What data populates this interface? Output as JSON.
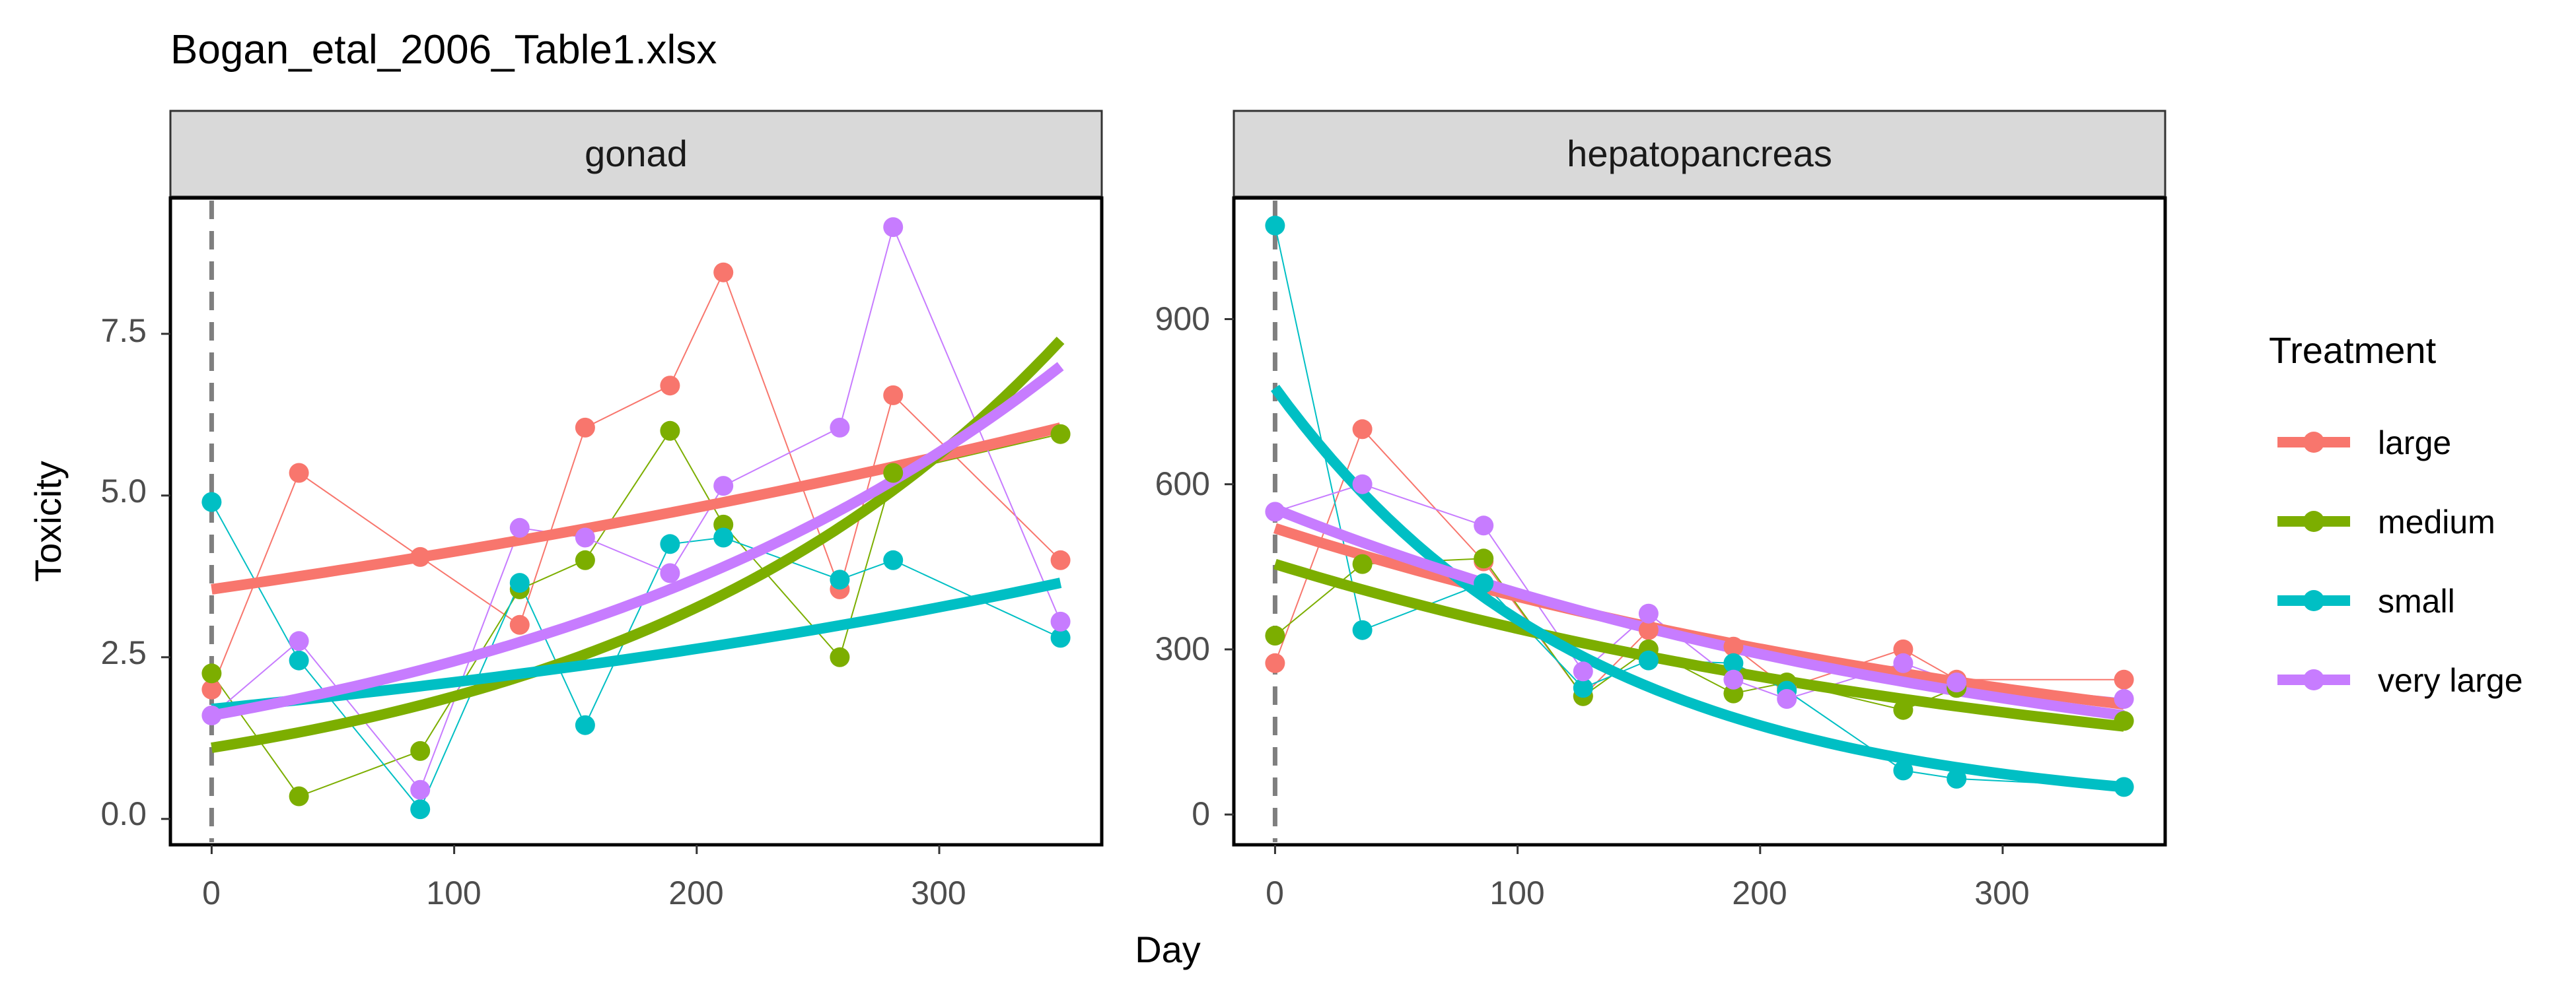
{
  "title": "Bogan_etal_2006_Table1.xlsx",
  "chart_data": {
    "type": "line",
    "xlabel": "Day",
    "ylabel": "Toxicity",
    "reference_line_x": 0,
    "xlim": [
      -17,
      367
    ],
    "x_ticks": [
      "0",
      "100",
      "200",
      "300"
    ],
    "legend": {
      "title": "Treatment",
      "position": "right",
      "entries": [
        "large",
        "medium",
        "small",
        "very large"
      ]
    },
    "colors": {
      "large": "#F8766D",
      "medium": "#7CAE00",
      "small": "#00BFC4",
      "very large": "#C77CFF"
    },
    "panels": [
      {
        "strip": "gonad",
        "ylim": [
          -0.4,
          9.6
        ],
        "y_ticks": [
          "0.0",
          "2.5",
          "5.0",
          "7.5"
        ],
        "series": [
          {
            "name": "large",
            "x": [
              0,
              36,
              86,
              127,
              154,
              189,
              211,
              259,
              281,
              350
            ],
            "y": [
              2.0,
              5.35,
              4.05,
              3.0,
              6.05,
              6.7,
              8.45,
              3.55,
              6.55,
              4.0
            ],
            "fit": [
              3.55,
              6.05
            ]
          },
          {
            "name": "medium",
            "x": [
              0,
              36,
              86,
              127,
              154,
              189,
              211,
              259,
              281,
              350
            ],
            "y": [
              2.25,
              0.35,
              1.05,
              3.55,
              4.0,
              6.0,
              4.55,
              2.5,
              5.35,
              5.95
            ],
            "fit": [
              1.1,
              7.4
            ]
          },
          {
            "name": "small",
            "x": [
              0,
              36,
              86,
              127,
              154,
              189,
              211,
              259,
              281,
              350
            ],
            "y": [
              4.9,
              2.45,
              0.15,
              3.65,
              1.45,
              4.25,
              4.35,
              3.7,
              4.0,
              2.8
            ],
            "fit": [
              1.7,
              3.65
            ]
          },
          {
            "name": "very large",
            "x": [
              0,
              36,
              86,
              127,
              154,
              189,
              211,
              259,
              281,
              350
            ],
            "y": [
              1.6,
              2.75,
              0.45,
              4.5,
              4.35,
              3.8,
              5.15,
              6.05,
              9.15,
              3.05
            ],
            "fit": [
              1.6,
              7.0
            ]
          }
        ]
      },
      {
        "strip": "hepatopancreas",
        "ylim": [
          -55,
          1120
        ],
        "y_ticks": [
          "0",
          "300",
          "600",
          "900"
        ],
        "series": [
          {
            "name": "large",
            "x": [
              0,
              36,
              86,
              127,
              154,
              189,
              211,
              259,
              281,
              350
            ],
            "y": [
              275,
              700,
              460,
              215,
              335,
              305,
              230,
              300,
              245,
              245
            ],
            "fit": [
              520,
              200
            ]
          },
          {
            "name": "medium",
            "x": [
              0,
              36,
              86,
              127,
              154,
              189,
              211,
              259,
              281,
              350
            ],
            "y": [
              325,
              455,
              465,
              215,
              300,
              220,
              240,
              190,
              230,
              170
            ],
            "fit": [
              455,
              160
            ]
          },
          {
            "name": "small",
            "x": [
              0,
              36,
              86,
              127,
              154,
              189,
              211,
              259,
              281,
              350
            ],
            "y": [
              1070,
              335,
              420,
              230,
              280,
              275,
              225,
              80,
              65,
              50
            ],
            "fit": [
              775,
              50
            ]
          },
          {
            "name": "very large",
            "x": [
              0,
              36,
              86,
              127,
              154,
              189,
              211,
              259,
              281,
              350
            ],
            "y": [
              550,
              600,
              525,
              260,
              365,
              245,
              210,
              275,
              240,
              210
            ],
            "fit": [
              555,
              180
            ]
          }
        ]
      }
    ]
  }
}
